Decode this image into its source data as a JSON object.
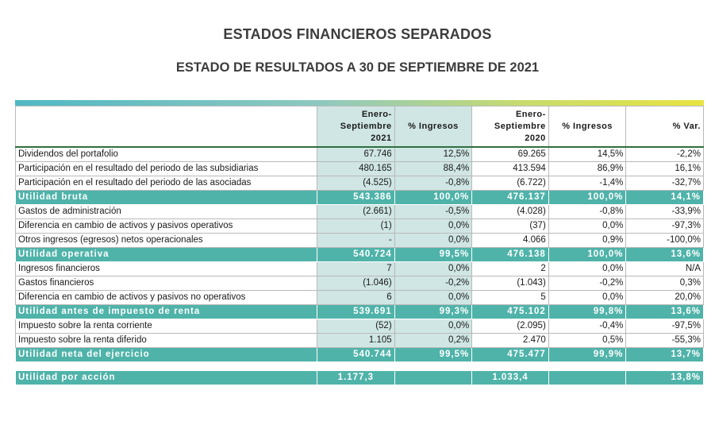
{
  "title": "ESTADOS FINANCIEROS SEPARADOS",
  "subtitle": "ESTADO DE RESULTADOS A 30 DE SEPTIEMBRE DE 2021",
  "header": {
    "col1_line1": "Enero-",
    "col1_line2": "Septiembre",
    "col1_line3": "2021",
    "col2": "% Ingresos",
    "col3_line1": "Enero-",
    "col3_line2": "Septiembre",
    "col3_line3": "2020",
    "col4": "% Ingresos",
    "col5": "% Var."
  },
  "rows": [
    {
      "label": "Dividendos del portafolio",
      "v2021": "67.746",
      "p2021": "12,5%",
      "v2020": "69.265",
      "p2020": "14,5%",
      "var": "-2,2%"
    },
    {
      "label": "Participación en el resultado del periodo de las subsidiarias",
      "v2021": "480.165",
      "p2021": "88,4%",
      "v2020": "413.594",
      "p2020": "86,9%",
      "var": "16,1%"
    },
    {
      "label": "Participación en el resultado del periodo de las asociadas",
      "v2021": "(4.525)",
      "p2021": "-0,8%",
      "v2020": "(6.722)",
      "p2020": "-1,4%",
      "var": "-32,7%"
    },
    {
      "label": "Utilidad bruta",
      "v2021": "543.386",
      "p2021": "100,0%",
      "v2020": "476.137",
      "p2020": "100,0%",
      "var": "14,1%"
    },
    {
      "label": "Gastos de administración",
      "v2021": "(2.661)",
      "p2021": "-0,5%",
      "v2020": "(4.028)",
      "p2020": "-0,8%",
      "var": "-33,9%"
    },
    {
      "label": "Diferencia en cambio de activos y pasivos operativos",
      "v2021": "(1)",
      "p2021": "0,0%",
      "v2020": "(37)",
      "p2020": "0,0%",
      "var": "-97,3%"
    },
    {
      "label": "Otros ingresos (egresos) netos operacionales",
      "v2021": "-",
      "p2021": "0,0%",
      "v2020": "4.066",
      "p2020": "0,9%",
      "var": "-100,0%"
    },
    {
      "label": "Utilidad operativa",
      "v2021": "540.724",
      "p2021": "99,5%",
      "v2020": "476.138",
      "p2020": "100,0%",
      "var": "13,6%"
    },
    {
      "label": "Ingresos financieros",
      "v2021": "7",
      "p2021": "0,0%",
      "v2020": "2",
      "p2020": "0,0%",
      "var": "N/A"
    },
    {
      "label": "Gastos financieros",
      "v2021": "(1.046)",
      "p2021": "-0,2%",
      "v2020": "(1.043)",
      "p2020": "-0,2%",
      "var": "0,3%"
    },
    {
      "label": "Diferencia en cambio de activos y pasivos no operativos",
      "v2021": "6",
      "p2021": "0,0%",
      "v2020": "5",
      "p2020": "0,0%",
      "var": "20,0%"
    },
    {
      "label": "Utilidad antes de impuesto de renta",
      "v2021": "539.691",
      "p2021": "99,3%",
      "v2020": "475.102",
      "p2020": "99,8%",
      "var": "13,6%"
    },
    {
      "label": "Impuesto sobre la renta corriente",
      "v2021": "(52)",
      "p2021": "0,0%",
      "v2020": "(2.095)",
      "p2020": "-0,4%",
      "var": "-97,5%"
    },
    {
      "label": "Impuesto sobre la renta diferido",
      "v2021": "1.105",
      "p2021": "0,2%",
      "v2020": "2.470",
      "p2020": "0,5%",
      "var": "-55,3%"
    },
    {
      "label": "Utilidad neta del ejercicio",
      "v2021": "540.744",
      "p2021": "99,5%",
      "v2020": "475.477",
      "p2020": "99,9%",
      "var": "13,7%"
    }
  ],
  "eps": {
    "label": "Utilidad por acción",
    "v2021": "1.177,3",
    "v2020": "1.033,4",
    "var": "13,8%"
  },
  "colors": {
    "total_fill": "#4fb3a9",
    "highlight_col": "#cfe6e4",
    "rule": "#2f6f3f"
  }
}
